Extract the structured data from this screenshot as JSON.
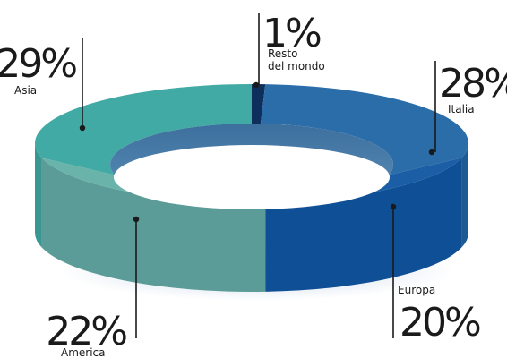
{
  "chart_data": {
    "type": "pie",
    "style": "3d-donut",
    "title": "",
    "slices": [
      {
        "label": "Resto del mondo",
        "label_lines": [
          "Resto",
          "del mondo"
        ],
        "value_label": "1%",
        "value": 1,
        "top_color": "#0e2f5c",
        "side_color": "#0a2448"
      },
      {
        "label": "Italia",
        "label_lines": [
          "Italia"
        ],
        "value_label": "28%",
        "value": 28,
        "top_color": "#2a6da8",
        "side_color": "#1d5a93"
      },
      {
        "label": "Europa",
        "label_lines": [
          "Europa"
        ],
        "value_label": "20%",
        "value": 20,
        "top_color": "#1c5ea5",
        "side_color": "#0f4f96"
      },
      {
        "label": "America",
        "label_lines": [
          "America"
        ],
        "value_label": "22%",
        "value": 22,
        "top_color": "#6ab3aa",
        "side_color": "#5c9c98"
      },
      {
        "label": "Asia",
        "label_lines": [
          "Asia"
        ],
        "value_label": "29%",
        "value": 29,
        "top_color": "#42aaa4",
        "side_color": "#3a9690"
      }
    ]
  }
}
